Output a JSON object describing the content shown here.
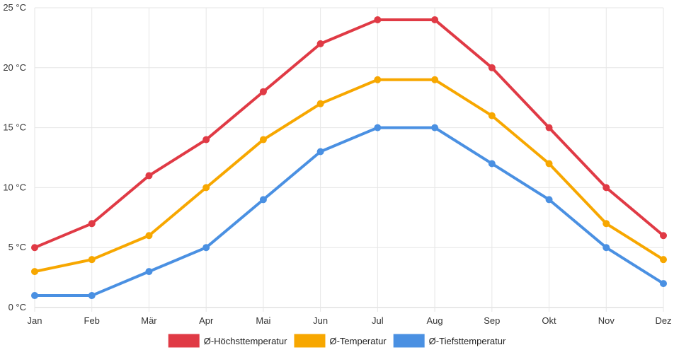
{
  "chart_data": {
    "type": "line",
    "title": "",
    "xlabel": "",
    "ylabel": "",
    "categories": [
      "Jan",
      "Feb",
      "Mär",
      "Apr",
      "Mai",
      "Jun",
      "Jul",
      "Aug",
      "Sep",
      "Okt",
      "Nov",
      "Dez"
    ],
    "ylim": [
      0,
      25
    ],
    "yticks": [
      0,
      5,
      10,
      15,
      20,
      25
    ],
    "ytick_labels": [
      "0 °C",
      "5 °C",
      "10 °C",
      "15 °C",
      "20 °C",
      "25 °C"
    ],
    "grid": true,
    "legend_position": "bottom-center",
    "series": [
      {
        "name": "Ø-Höchsttemperatur",
        "color": "#e03a45",
        "values": [
          5,
          7,
          11,
          14,
          18,
          22,
          24,
          24,
          20,
          15,
          10,
          6
        ]
      },
      {
        "name": "Ø-Temperatur",
        "color": "#f7a700",
        "values": [
          3,
          4,
          6,
          10,
          14,
          17,
          19,
          19,
          16,
          12,
          7,
          4
        ]
      },
      {
        "name": "Ø-Tiefsttemperatur",
        "color": "#4a90e2",
        "values": [
          1,
          1,
          3,
          5,
          9,
          13,
          15,
          15,
          12,
          9,
          5,
          2
        ]
      }
    ]
  }
}
